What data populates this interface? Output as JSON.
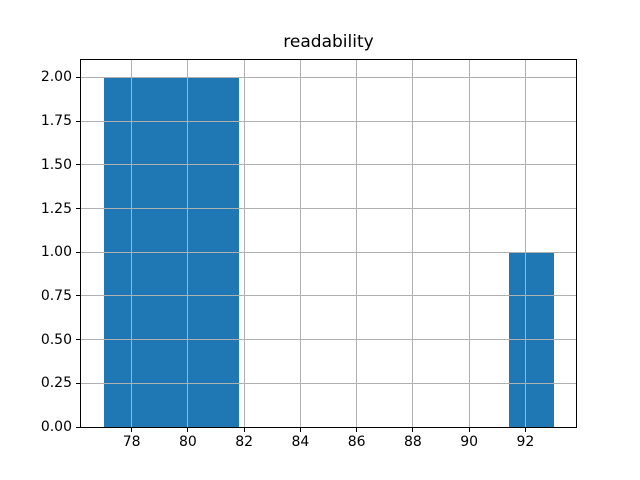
{
  "figure": {
    "background": "#ffffff"
  },
  "chart_data": {
    "type": "bar",
    "subtype": "histogram",
    "title": "readability",
    "xlabel": "",
    "ylabel": "",
    "bin_edges": [
      77.0,
      78.6,
      80.2,
      81.8,
      83.4,
      85.0,
      86.6,
      88.2,
      89.8,
      91.4,
      93.0
    ],
    "counts": [
      2,
      2,
      2,
      0,
      0,
      0,
      0,
      0,
      0,
      1
    ],
    "xlim": [
      76.2,
      93.8
    ],
    "ylim": [
      0,
      2.1
    ],
    "xticks": {
      "values": [
        78,
        80,
        82,
        84,
        86,
        88,
        90,
        92
      ],
      "labels": [
        "78",
        "80",
        "82",
        "84",
        "86",
        "88",
        "90",
        "92"
      ]
    },
    "yticks": {
      "values": [
        0.0,
        0.25,
        0.5,
        0.75,
        1.0,
        1.25,
        1.5,
        1.75,
        2.0
      ],
      "labels": [
        "0.00",
        "0.25",
        "0.50",
        "0.75",
        "1.00",
        "1.25",
        "1.50",
        "1.75",
        "2.00"
      ]
    },
    "grid": true,
    "legend": null,
    "bar_color": "#1f77b4",
    "grid_color": "#b0b0b0",
    "spine_color": "#000000",
    "text_color": "#000000"
  }
}
